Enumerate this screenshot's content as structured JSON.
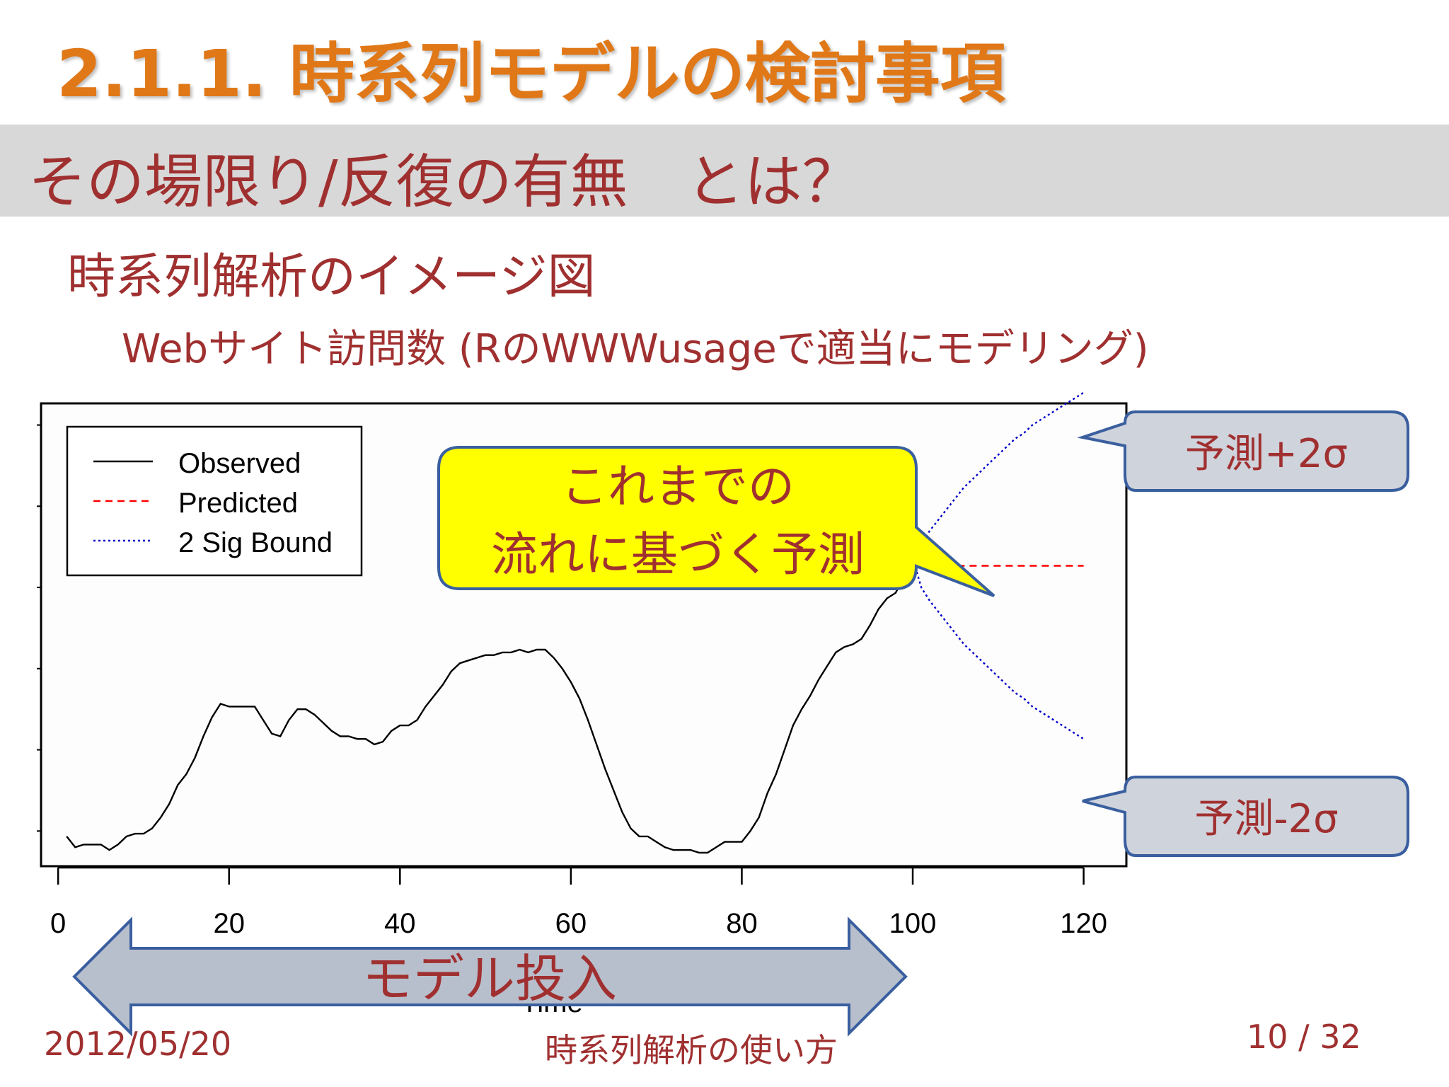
{
  "slide": {
    "title": "2.1.1. 時系列モデルの検討事項",
    "subtitle": "その場限り/反復の有無　とは？",
    "heading": "時系列解析のイメージ図",
    "subheading": "Webサイト訪問数  (RのWWWusageで適当にモデリング)"
  },
  "callouts": {
    "main_line1": "これまでの",
    "main_line2": "流れに基づく予測",
    "upper": "予測+2σ",
    "lower": "予測-2σ",
    "arrow_label": "モデル投入"
  },
  "footer": {
    "date": "2012/05/20",
    "title": "時系列解析の使い方",
    "page": "10 / 32"
  },
  "colors": {
    "title": "#e07818",
    "text": "#a03030",
    "callout_fill": "#ffff00",
    "callout_border": "#3a5f9f",
    "side_box_fill": "#cfd3dc",
    "arrow_fill": "#b8bfcc",
    "observed": "#000000",
    "predicted": "#ff0000",
    "bound": "#0000cc"
  },
  "chart_data": {
    "type": "line",
    "xlabel": "Time",
    "ylabel": "",
    "xlim": [
      -2,
      125
    ],
    "ylim": [
      77,
      248
    ],
    "xticks": [
      0,
      20,
      40,
      60,
      80,
      100,
      120
    ],
    "legend": {
      "position": "top-left",
      "entries": [
        "Observed",
        "Predicted",
        "2 Sig Bound"
      ]
    },
    "series": [
      {
        "name": "Observed",
        "style": "solid",
        "x": [
          1,
          2,
          3,
          4,
          5,
          6,
          7,
          8,
          9,
          10,
          11,
          12,
          13,
          14,
          15,
          16,
          17,
          18,
          19,
          20,
          21,
          22,
          23,
          24,
          25,
          26,
          27,
          28,
          29,
          30,
          31,
          32,
          33,
          34,
          35,
          36,
          37,
          38,
          39,
          40,
          41,
          42,
          43,
          44,
          45,
          46,
          47,
          48,
          49,
          50,
          51,
          52,
          53,
          54,
          55,
          56,
          57,
          58,
          59,
          60,
          61,
          62,
          63,
          64,
          65,
          66,
          67,
          68,
          69,
          70,
          71,
          72,
          73,
          74,
          75,
          76,
          77,
          78,
          79,
          80,
          81,
          82,
          83,
          84,
          85,
          86,
          87,
          88,
          89,
          90,
          91,
          92,
          93,
          94,
          95,
          96,
          97,
          98,
          99,
          100
        ],
        "values": [
          88,
          84,
          85,
          85,
          85,
          83,
          85,
          88,
          89,
          89,
          91,
          95,
          100,
          107,
          111,
          117,
          125,
          132,
          137,
          136,
          136,
          136,
          136,
          131,
          126,
          125,
          131,
          135,
          135,
          133,
          130,
          127,
          125,
          125,
          124,
          124,
          122,
          123,
          127,
          129,
          129,
          131,
          136,
          140,
          144,
          149,
          152,
          153,
          154,
          155,
          155,
          156,
          156,
          157,
          156,
          157,
          157,
          154,
          150,
          145,
          139,
          131,
          122,
          113,
          105,
          97,
          91,
          88,
          88,
          86,
          84,
          83,
          83,
          83,
          82,
          82,
          84,
          86,
          86,
          86,
          90,
          95,
          104,
          111,
          120,
          129,
          135,
          140,
          146,
          151,
          156,
          158,
          159,
          161,
          166,
          172,
          176,
          178,
          184,
          191
        ]
      },
      {
        "name": "Predicted",
        "style": "dashed",
        "x": [
          100,
          101,
          102,
          103,
          104,
          105,
          106,
          107,
          108,
          109,
          110,
          111,
          112,
          113,
          114,
          115,
          116,
          117,
          118,
          119,
          120
        ],
        "values": [
          191,
          188,
          188,
          188,
          188,
          188,
          188,
          188,
          188,
          188,
          188,
          188,
          188,
          188,
          188,
          188,
          188,
          188,
          188,
          188,
          188
        ]
      },
      {
        "name": "2 Sig Bound (upper)",
        "style": "dotted",
        "x": [
          100,
          101,
          102,
          103,
          104,
          105,
          106,
          107,
          108,
          109,
          110,
          111,
          112,
          113,
          114,
          115,
          116,
          117,
          118,
          119,
          120
        ],
        "values": [
          191,
          196,
          201,
          205,
          209,
          213,
          217,
          220,
          223,
          226,
          229,
          232,
          235,
          237,
          240,
          242,
          244,
          246,
          248,
          250,
          252
        ]
      },
      {
        "name": "2 Sig Bound (lower)",
        "style": "dotted",
        "x": [
          100,
          101,
          102,
          103,
          104,
          105,
          106,
          107,
          108,
          109,
          110,
          111,
          112,
          113,
          114,
          115,
          116,
          117,
          118,
          119,
          120
        ],
        "values": [
          191,
          180,
          175,
          171,
          167,
          163,
          159,
          156,
          153,
          150,
          147,
          144,
          141,
          139,
          136,
          134,
          132,
          130,
          128,
          126,
          124
        ]
      }
    ]
  }
}
